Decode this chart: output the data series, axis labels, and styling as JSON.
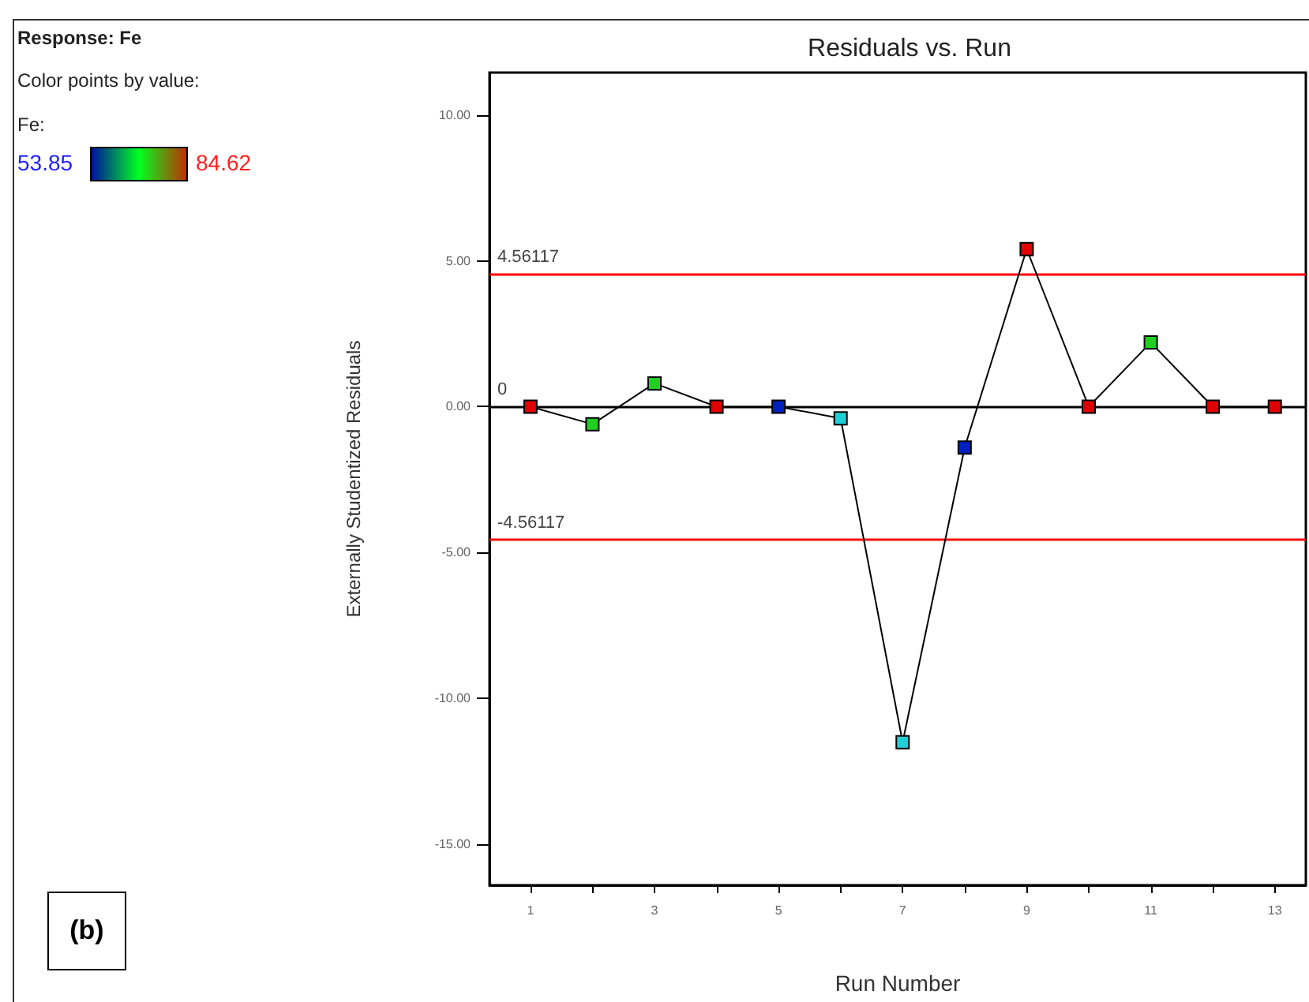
{
  "chart_data": {
    "type": "line",
    "title": "Residuals vs. Run",
    "xlabel": "Run Number",
    "ylabel": "Externally Studentized Residuals",
    "clabel": "Fe:",
    "annotations": [
      "Response: Fe",
      "Color points by value:",
      "(b)",
      "53.85",
      "84.62"
    ],
    "x": [
      1,
      2,
      3,
      4,
      5,
      6,
      7,
      8,
      9,
      10,
      11,
      12,
      13
    ],
    "series": [
      {
        "color": "#000000",
        "values": [
          0,
          -0.6,
          0.8,
          0,
          0,
          -0.4,
          -11.5,
          -1.4,
          5.4,
          0,
          2.2,
          0,
          0
        ],
        "colors": [
          "#e00000",
          "#20d020",
          "#20d020",
          "#e00000",
          "#0020c0",
          "#20d0d8",
          "#20d0d8",
          "#0020c0",
          "#e00000",
          "#e00000",
          "#20d020",
          "#e00000",
          "#e00000"
        ]
      }
    ],
    "xlim": [
      0.34,
      13.5
    ],
    "xticks": [
      1,
      {
        "value": 2,
        "label": null
      },
      3,
      {
        "value": 4,
        "label": null
      },
      5,
      {
        "value": 6,
        "label": null
      },
      7,
      {
        "value": 8,
        "label": null
      },
      9,
      {
        "value": 10,
        "label": null
      },
      11,
      {
        "value": 12,
        "label": null
      },
      13
    ],
    "ylim": [
      -16.4,
      11.45
    ],
    "yticks": [
      {
        "value": -15,
        "label": "-15.00"
      },
      {
        "value": -10,
        "label": "-10.00"
      },
      {
        "value": -5,
        "label": "-5.00"
      },
      {
        "value": 0,
        "label": "0.00"
      },
      {
        "value": 5,
        "label": "5.00"
      },
      {
        "value": 10,
        "label": "10.00"
      }
    ],
    "ref_lines": [
      {
        "axis": "y",
        "value": 4.56117,
        "label": "4.56117",
        "color": "#ff0000"
      },
      {
        "axis": "y",
        "value": 0,
        "label": "0",
        "color": "#000000"
      },
      {
        "axis": "y",
        "value": -4.56117,
        "label": "-4.56117",
        "color": "#ff0000"
      }
    ],
    "grid": false,
    "marker": "square",
    "line_style": "solid"
  }
}
